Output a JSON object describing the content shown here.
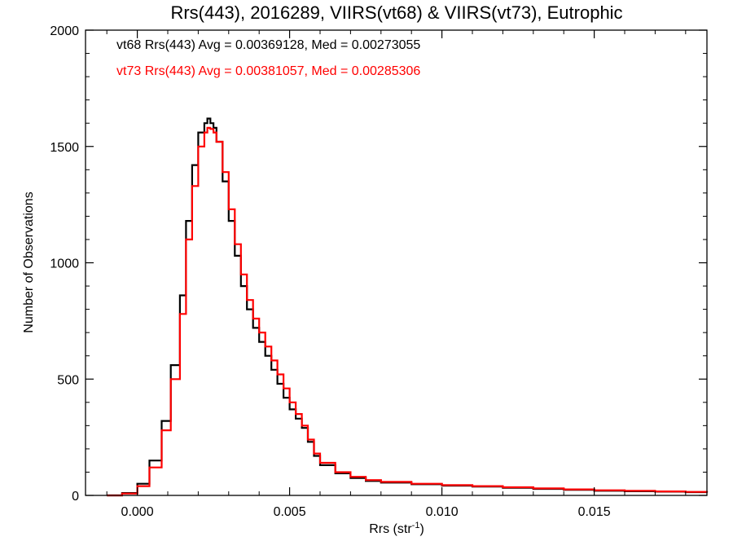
{
  "chart_data": {
    "type": "line",
    "title": "Rrs(443), 2016289, VIIRS(vt68) & VIIRS(vt73), Eutrophic",
    "xlabel": "Rrs (str",
    "xlabel_sup": "-1",
    "xlabel_end": ")",
    "ylabel": "Number of Observations",
    "xlim": [
      -0.0017,
      0.0187
    ],
    "ylim": [
      0,
      2000
    ],
    "xticks": [
      0.0,
      0.005,
      0.01,
      0.015
    ],
    "xtick_labels": [
      "0.000",
      "0.005",
      "0.010",
      "0.015"
    ],
    "yticks": [
      0,
      500,
      1000,
      1500,
      2000
    ],
    "ytick_labels": [
      "0",
      "500",
      "1000",
      "1500",
      "2000"
    ],
    "grid": false,
    "series": [
      {
        "name": "vt68",
        "color": "#000000",
        "x": [
          -0.001,
          -0.0005,
          0.0,
          0.0004,
          0.0008,
          0.0011,
          0.0014,
          0.0016,
          0.0018,
          0.002,
          0.0022,
          0.0023,
          0.0024,
          0.0025,
          0.0026,
          0.0028,
          0.003,
          0.0032,
          0.0034,
          0.0036,
          0.0038,
          0.004,
          0.0042,
          0.0044,
          0.0046,
          0.0048,
          0.005,
          0.0052,
          0.0054,
          0.0056,
          0.0058,
          0.006,
          0.0065,
          0.007,
          0.0075,
          0.008,
          0.009,
          0.01,
          0.011,
          0.012,
          0.013,
          0.014,
          0.015,
          0.016,
          0.017,
          0.018,
          0.0187
        ],
        "y": [
          0,
          10,
          50,
          150,
          320,
          560,
          860,
          1180,
          1420,
          1560,
          1600,
          1620,
          1600,
          1580,
          1520,
          1350,
          1180,
          1030,
          900,
          800,
          720,
          660,
          600,
          540,
          480,
          420,
          370,
          330,
          290,
          230,
          170,
          130,
          95,
          75,
          62,
          55,
          48,
          42,
          38,
          33,
          28,
          24,
          20,
          18,
          16,
          14,
          12
        ]
      },
      {
        "name": "vt73",
        "color": "#ff0000",
        "x": [
          -0.001,
          -0.0005,
          0.0,
          0.0004,
          0.0008,
          0.0011,
          0.0014,
          0.0016,
          0.0018,
          0.002,
          0.0022,
          0.0023,
          0.0024,
          0.0025,
          0.0026,
          0.0028,
          0.003,
          0.0032,
          0.0034,
          0.0036,
          0.0038,
          0.004,
          0.0042,
          0.0044,
          0.0046,
          0.0048,
          0.005,
          0.0052,
          0.0054,
          0.0056,
          0.0058,
          0.006,
          0.0065,
          0.007,
          0.0075,
          0.008,
          0.009,
          0.01,
          0.011,
          0.012,
          0.013,
          0.014,
          0.015,
          0.016,
          0.017,
          0.018,
          0.0187
        ],
        "y": [
          0,
          8,
          40,
          120,
          280,
          500,
          780,
          1100,
          1330,
          1500,
          1560,
          1580,
          1575,
          1560,
          1520,
          1390,
          1230,
          1080,
          950,
          840,
          760,
          700,
          640,
          580,
          520,
          460,
          400,
          350,
          300,
          240,
          180,
          140,
          100,
          80,
          66,
          58,
          50,
          44,
          40,
          35,
          30,
          26,
          22,
          20,
          17,
          15,
          13
        ]
      }
    ],
    "annotations": [
      {
        "text": "vt68 Rrs(443) Avg = 0.00369128, Med = 0.00273055",
        "color": "#000000"
      },
      {
        "text": "vt73 Rrs(443) Avg = 0.00381057, Med = 0.00285306",
        "color": "#ff0000"
      }
    ]
  }
}
